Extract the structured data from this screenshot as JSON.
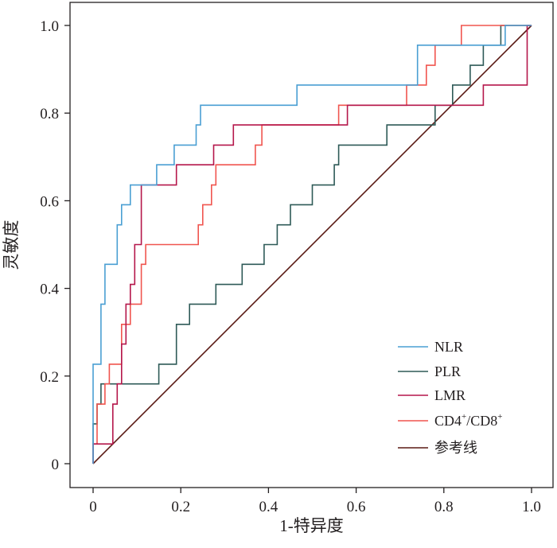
{
  "chart_data": {
    "type": "line",
    "xlabel": "1-特异度",
    "ylabel": "灵敏度",
    "xlim": [
      0,
      1
    ],
    "ylim": [
      0,
      1
    ],
    "x_ticks": [
      "0",
      "0.2",
      "0.4",
      "0.6",
      "0.8",
      "1.0"
    ],
    "y_ticks": [
      "0",
      "0.2",
      "0.4",
      "0.6",
      "0.8",
      "1.0"
    ],
    "grid": false,
    "legend_position": "bottom-right",
    "series": [
      {
        "name": "NLR",
        "color": "#4a9fd3",
        "x": [
          0,
          0,
          0.018,
          0.018,
          0.027,
          0.027,
          0.037,
          0.037,
          0.055,
          0.055,
          0.065,
          0.065,
          0.085,
          0.085,
          0.11,
          0.11,
          0.145,
          0.145,
          0.185,
          0.185,
          0.235,
          0.235,
          0.245,
          0.245,
          0.465,
          0.465,
          0.74,
          0.74,
          0.94,
          0.94,
          0.96,
          0.96,
          1.0
        ],
        "y": [
          0,
          0.227,
          0.227,
          0.364,
          0.364,
          0.455,
          0.455,
          0.455,
          0.455,
          0.545,
          0.545,
          0.591,
          0.591,
          0.636,
          0.636,
          0.636,
          0.636,
          0.682,
          0.682,
          0.727,
          0.727,
          0.773,
          0.773,
          0.818,
          0.818,
          0.864,
          0.864,
          0.955,
          0.955,
          1.0,
          1.0,
          1.0,
          1.0
        ]
      },
      {
        "name": "PLR",
        "color": "#2e5a57",
        "x": [
          0,
          0,
          0.009,
          0.009,
          0.018,
          0.018,
          0.15,
          0.15,
          0.19,
          0.19,
          0.22,
          0.22,
          0.28,
          0.28,
          0.34,
          0.34,
          0.39,
          0.39,
          0.42,
          0.42,
          0.45,
          0.45,
          0.47,
          0.47,
          0.5,
          0.5,
          0.55,
          0.55,
          0.56,
          0.56,
          0.67,
          0.67,
          0.78,
          0.78,
          0.82,
          0.82,
          0.86,
          0.86,
          0.89,
          0.89,
          0.93,
          0.93,
          0.97,
          0.97,
          1.0
        ],
        "y": [
          0,
          0.091,
          0.091,
          0.136,
          0.136,
          0.182,
          0.182,
          0.227,
          0.227,
          0.318,
          0.318,
          0.364,
          0.364,
          0.409,
          0.409,
          0.455,
          0.455,
          0.5,
          0.5,
          0.545,
          0.545,
          0.591,
          0.591,
          0.591,
          0.591,
          0.636,
          0.636,
          0.682,
          0.682,
          0.727,
          0.727,
          0.773,
          0.773,
          0.818,
          0.818,
          0.864,
          0.864,
          0.909,
          0.909,
          0.955,
          0.955,
          1.0,
          1.0,
          1.0,
          1.0
        ]
      },
      {
        "name": "LMR",
        "color": "#b5174b",
        "x": [
          0,
          0,
          0.045,
          0.045,
          0.055,
          0.055,
          0.065,
          0.065,
          0.075,
          0.075,
          0.085,
          0.085,
          0.095,
          0.095,
          0.11,
          0.11,
          0.19,
          0.19,
          0.275,
          0.275,
          0.32,
          0.32,
          0.58,
          0.58,
          0.8,
          0.8,
          0.89,
          0.89,
          0.99,
          0.99,
          1.0
        ],
        "y": [
          0,
          0.045,
          0.045,
          0.136,
          0.136,
          0.182,
          0.182,
          0.273,
          0.273,
          0.364,
          0.364,
          0.409,
          0.409,
          0.5,
          0.5,
          0.636,
          0.636,
          0.682,
          0.682,
          0.727,
          0.727,
          0.773,
          0.773,
          0.818,
          0.818,
          0.818,
          0.818,
          0.864,
          0.864,
          1.0,
          1.0
        ]
      },
      {
        "name": "CD4+/CD8+",
        "name_parts": [
          "CD4",
          "+",
          "/CD8",
          "+"
        ],
        "color": "#f0554f",
        "x": [
          0,
          0,
          0.009,
          0.009,
          0.027,
          0.027,
          0.037,
          0.037,
          0.055,
          0.055,
          0.065,
          0.065,
          0.075,
          0.075,
          0.085,
          0.085,
          0.09,
          0.09,
          0.1,
          0.1,
          0.11,
          0.11,
          0.12,
          0.12,
          0.24,
          0.24,
          0.25,
          0.25,
          0.27,
          0.27,
          0.28,
          0.28,
          0.37,
          0.37,
          0.385,
          0.385,
          0.56,
          0.56,
          0.715,
          0.715,
          0.75,
          0.75,
          0.76,
          0.76,
          0.78,
          0.78,
          0.84,
          0.84,
          0.88,
          0.88,
          1.0
        ],
        "y": [
          0,
          0.045,
          0.045,
          0.136,
          0.136,
          0.182,
          0.182,
          0.227,
          0.227,
          0.227,
          0.227,
          0.318,
          0.318,
          0.318,
          0.318,
          0.364,
          0.364,
          0.364,
          0.364,
          0.364,
          0.364,
          0.455,
          0.455,
          0.5,
          0.5,
          0.545,
          0.545,
          0.591,
          0.591,
          0.636,
          0.636,
          0.682,
          0.682,
          0.727,
          0.727,
          0.773,
          0.773,
          0.818,
          0.818,
          0.864,
          0.864,
          0.864,
          0.864,
          0.909,
          0.909,
          0.955,
          0.955,
          1.0,
          1.0,
          1.0,
          1.0
        ]
      },
      {
        "name": "参考线",
        "color": "#5a1a14",
        "x": [
          0,
          1
        ],
        "y": [
          0,
          1
        ]
      }
    ]
  }
}
